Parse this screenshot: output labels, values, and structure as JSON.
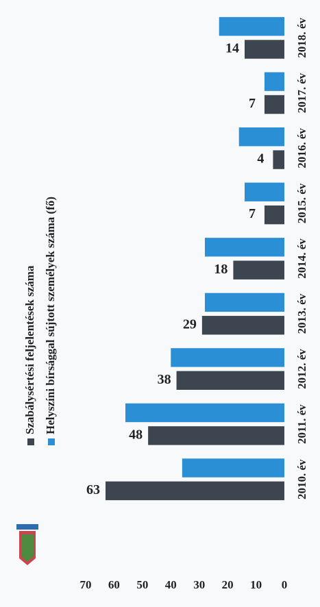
{
  "chart_data": {
    "type": "bar",
    "categories": [
      "2010. év",
      "2011. év",
      "2012. év",
      "2013. év",
      "2014. év",
      "2015. év",
      "2016. év",
      "2017. év",
      "2018. év"
    ],
    "series": [
      {
        "name": "Szabálysértési feljelentések száma",
        "color": "#3d4650",
        "values": [
          63,
          48,
          38,
          29,
          18,
          7,
          4,
          7,
          14
        ]
      },
      {
        "name": "Helyszíni bírsággal sújtott személyek száma (fő)",
        "color": "#2b8fd6",
        "values": [
          36,
          56,
          40,
          28,
          28,
          14,
          16,
          7,
          23
        ]
      }
    ],
    "ylim": [
      0,
      70
    ],
    "yticks": [
      0,
      10,
      20,
      30,
      40,
      50,
      60,
      70
    ],
    "grid": false
  }
}
